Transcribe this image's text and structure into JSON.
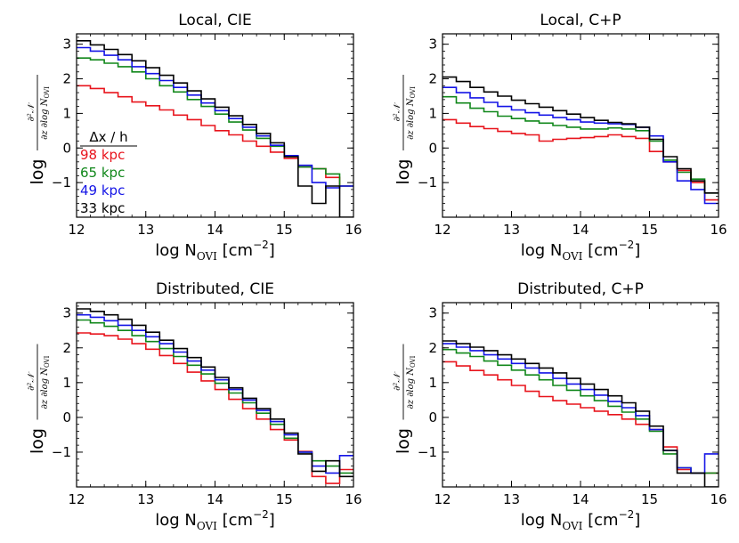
{
  "chart_data": [
    {
      "type": "line",
      "step": true,
      "title": "Local, CIE",
      "xlabel": {
        "prefix": "log N",
        "sub": "OVI",
        "suffix": " [cm",
        "sup": "−2",
        "close": "]"
      },
      "ylabel": {
        "log": "log",
        "num": "∂²𝒩",
        "den": "∂z ∂log N",
        "den_sub": "OVI"
      },
      "xlim": [
        12,
        16
      ],
      "ylim": [
        -2,
        3.3
      ],
      "xticks": [
        12,
        13,
        14,
        15,
        16
      ],
      "yticks": [
        -1,
        0,
        1,
        2,
        3
      ],
      "x": [
        12.0,
        12.2,
        12.4,
        12.6,
        12.8,
        13.0,
        13.2,
        13.4,
        13.6,
        13.8,
        14.0,
        14.2,
        14.4,
        14.6,
        14.8,
        15.0,
        15.2,
        15.4,
        15.6,
        15.8,
        16.0
      ],
      "series": [
        {
          "name": "98 kpc",
          "color": "#e8141c",
          "values": [
            1.8,
            1.72,
            1.6,
            1.48,
            1.33,
            1.22,
            1.1,
            0.95,
            0.82,
            0.65,
            0.5,
            0.38,
            0.2,
            0.05,
            -0.12,
            -0.3,
            -0.55,
            -0.6,
            -0.85,
            -1.1,
            -1.0
          ]
        },
        {
          "name": "65 kpc",
          "color": "#10871a",
          "values": [
            2.6,
            2.55,
            2.45,
            2.35,
            2.2,
            2.0,
            1.8,
            1.62,
            1.4,
            1.2,
            0.98,
            0.75,
            0.52,
            0.28,
            0.05,
            -0.25,
            -0.55,
            -0.6,
            -0.75,
            -1.1,
            -1.1
          ]
        },
        {
          "name": "49 kpc",
          "color": "#1414e6",
          "values": [
            2.9,
            2.8,
            2.68,
            2.55,
            2.35,
            2.15,
            1.95,
            1.75,
            1.53,
            1.3,
            1.08,
            0.85,
            0.6,
            0.35,
            0.08,
            -0.22,
            -0.5,
            -1.0,
            -1.15,
            -1.1,
            -1.1
          ]
        },
        {
          "name": "33 kpc",
          "color": "#000000",
          "values": [
            3.1,
            2.98,
            2.85,
            2.7,
            2.52,
            2.32,
            2.1,
            1.88,
            1.65,
            1.42,
            1.18,
            0.93,
            0.68,
            0.42,
            0.15,
            -0.25,
            -1.1,
            -1.6,
            -1.1,
            -2.0,
            -2.0
          ]
        }
      ],
      "legend": {
        "title": "Δx / h",
        "position": "lower-left"
      }
    },
    {
      "type": "line",
      "step": true,
      "title": "Local, C+P",
      "xlabel": {
        "prefix": "log N",
        "sub": "OVI",
        "suffix": " [cm",
        "sup": "−2",
        "close": "]"
      },
      "ylabel": {
        "log": "log",
        "num": "∂²𝒩",
        "den": "∂z ∂log N",
        "den_sub": "OVI"
      },
      "xlim": [
        12,
        16
      ],
      "ylim": [
        -2,
        3.3
      ],
      "xticks": [
        12,
        13,
        14,
        15,
        16
      ],
      "yticks": [
        -1,
        0,
        1,
        2,
        3
      ],
      "x": [
        12.0,
        12.2,
        12.4,
        12.6,
        12.8,
        13.0,
        13.2,
        13.4,
        13.6,
        13.8,
        14.0,
        14.2,
        14.4,
        14.6,
        14.8,
        15.0,
        15.2,
        15.4,
        15.6,
        15.8,
        16.0
      ],
      "series": [
        {
          "name": "98 kpc",
          "color": "#e8141c",
          "values": [
            0.82,
            0.72,
            0.62,
            0.56,
            0.48,
            0.42,
            0.38,
            0.2,
            0.25,
            0.28,
            0.3,
            0.33,
            0.38,
            0.33,
            0.28,
            -0.1,
            -0.4,
            -0.65,
            -1.0,
            -1.5,
            -1.5
          ]
        },
        {
          "name": "65 kpc",
          "color": "#10871a",
          "values": [
            1.48,
            1.3,
            1.15,
            1.05,
            0.92,
            0.85,
            0.78,
            0.72,
            0.65,
            0.6,
            0.55,
            0.55,
            0.58,
            0.55,
            0.5,
            0.2,
            -0.35,
            -0.7,
            -0.9,
            -1.3,
            -1.3
          ]
        },
        {
          "name": "49 kpc",
          "color": "#1414e6",
          "values": [
            1.75,
            1.6,
            1.45,
            1.32,
            1.2,
            1.1,
            1.02,
            0.95,
            0.88,
            0.82,
            0.75,
            0.72,
            0.7,
            0.68,
            0.6,
            0.35,
            -0.4,
            -0.95,
            -1.2,
            -1.6,
            -1.6
          ]
        },
        {
          "name": "33 kpc",
          "color": "#000000",
          "values": [
            2.05,
            1.92,
            1.75,
            1.62,
            1.5,
            1.38,
            1.28,
            1.18,
            1.08,
            0.98,
            0.88,
            0.8,
            0.74,
            0.7,
            0.6,
            0.25,
            -0.25,
            -0.6,
            -0.95,
            -1.3,
            -1.3
          ]
        }
      ]
    },
    {
      "type": "line",
      "step": true,
      "title": "Distributed, CIE",
      "xlabel": {
        "prefix": "log N",
        "sub": "OVI",
        "suffix": " [cm",
        "sup": "−2",
        "close": "]"
      },
      "ylabel": {
        "log": "log",
        "num": "∂²𝒩",
        "den": "∂z ∂log N",
        "den_sub": "OVI"
      },
      "xlim": [
        12,
        16
      ],
      "ylim": [
        -2,
        3.3
      ],
      "xticks": [
        12,
        13,
        14,
        15,
        16
      ],
      "yticks": [
        -1,
        0,
        1,
        2,
        3
      ],
      "x": [
        12.0,
        12.2,
        12.4,
        12.6,
        12.8,
        13.0,
        13.2,
        13.4,
        13.6,
        13.8,
        14.0,
        14.2,
        14.4,
        14.6,
        14.8,
        15.0,
        15.2,
        15.4,
        15.6,
        15.8,
        16.0
      ],
      "series": [
        {
          "name": "98 kpc",
          "color": "#e8141c",
          "values": [
            2.43,
            2.4,
            2.35,
            2.25,
            2.12,
            1.96,
            1.78,
            1.55,
            1.3,
            1.05,
            0.8,
            0.52,
            0.25,
            -0.05,
            -0.35,
            -0.65,
            -0.98,
            -1.7,
            -1.9,
            -1.5,
            -1.5
          ]
        },
        {
          "name": "65 kpc",
          "color": "#10871a",
          "values": [
            2.8,
            2.72,
            2.62,
            2.5,
            2.35,
            2.18,
            1.98,
            1.75,
            1.5,
            1.25,
            0.98,
            0.7,
            0.42,
            0.12,
            -0.2,
            -0.6,
            -1.0,
            -1.25,
            -1.4,
            -1.6,
            -1.2
          ]
        },
        {
          "name": "49 kpc",
          "color": "#1414e6",
          "values": [
            2.95,
            2.88,
            2.78,
            2.65,
            2.5,
            2.32,
            2.12,
            1.88,
            1.62,
            1.36,
            1.08,
            0.8,
            0.5,
            0.2,
            -0.12,
            -0.5,
            -1.0,
            -1.4,
            -1.6,
            -1.1,
            -1.5
          ]
        },
        {
          "name": "33 kpc",
          "color": "#000000",
          "values": [
            3.12,
            3.05,
            2.95,
            2.82,
            2.65,
            2.45,
            2.22,
            1.98,
            1.72,
            1.45,
            1.15,
            0.85,
            0.55,
            0.25,
            -0.05,
            -0.45,
            -1.05,
            -1.55,
            -1.25,
            -1.7,
            -1.7
          ]
        }
      ]
    },
    {
      "type": "line",
      "step": true,
      "title": "Distributed, C+P",
      "xlabel": {
        "prefix": "log N",
        "sub": "OVI",
        "suffix": " [cm",
        "sup": "−2",
        "close": "]"
      },
      "ylabel": {
        "log": "log",
        "num": "∂²𝒩",
        "den": "∂z ∂log N",
        "den_sub": "OVI"
      },
      "xlim": [
        12,
        16
      ],
      "ylim": [
        -2,
        3.3
      ],
      "xticks": [
        12,
        13,
        14,
        15,
        16
      ],
      "yticks": [
        -1,
        0,
        1,
        2,
        3
      ],
      "x": [
        12.0,
        12.2,
        12.4,
        12.6,
        12.8,
        13.0,
        13.2,
        13.4,
        13.6,
        13.8,
        14.0,
        14.2,
        14.4,
        14.6,
        14.8,
        15.0,
        15.2,
        15.4,
        15.6,
        15.8,
        16.0
      ],
      "series": [
        {
          "name": "98 kpc",
          "color": "#e8141c",
          "values": [
            1.6,
            1.48,
            1.35,
            1.22,
            1.08,
            0.92,
            0.75,
            0.6,
            0.48,
            0.38,
            0.28,
            0.18,
            0.08,
            -0.05,
            -0.2,
            -0.35,
            -0.85,
            -1.5,
            -1.6,
            -1.6,
            -1.6
          ]
        },
        {
          "name": "65 kpc",
          "color": "#10871a",
          "values": [
            1.95,
            1.85,
            1.75,
            1.62,
            1.5,
            1.36,
            1.22,
            1.08,
            0.92,
            0.78,
            0.62,
            0.48,
            0.32,
            0.15,
            -0.05,
            -0.4,
            -1.05,
            -1.45,
            -1.6,
            -1.6,
            -1.3
          ]
        },
        {
          "name": "49 kpc",
          "color": "#1414e6",
          "values": [
            2.12,
            2.02,
            1.92,
            1.8,
            1.68,
            1.55,
            1.42,
            1.28,
            1.12,
            0.96,
            0.8,
            0.64,
            0.46,
            0.28,
            0.05,
            -0.35,
            -0.95,
            -1.45,
            -1.6,
            -1.05,
            -1.05
          ]
        },
        {
          "name": "33 kpc",
          "color": "#000000",
          "values": [
            2.2,
            2.12,
            2.02,
            1.92,
            1.8,
            1.68,
            1.55,
            1.42,
            1.28,
            1.12,
            0.96,
            0.8,
            0.62,
            0.42,
            0.18,
            -0.25,
            -0.95,
            -1.6,
            -1.6,
            -2.0,
            -2.0
          ]
        }
      ]
    }
  ]
}
